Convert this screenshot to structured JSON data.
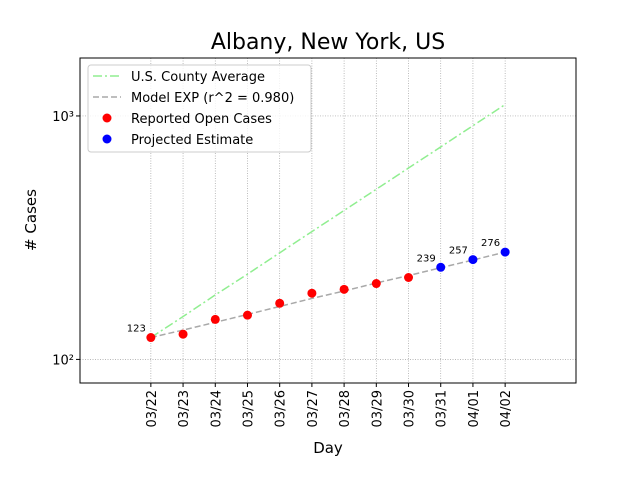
{
  "chart_data": {
    "type": "line",
    "title": "Albany, New York, US",
    "xlabel": "Day",
    "ylabel": "# Cases",
    "categories": [
      "03/22",
      "03/23",
      "03/24",
      "03/25",
      "03/26",
      "03/27",
      "03/28",
      "03/29",
      "03/30",
      "03/31",
      "04/01",
      "04/02"
    ],
    "ylim": [
      80,
      1730
    ],
    "yscale": "log",
    "yticks": [
      {
        "value": 100,
        "label": "10²"
      },
      {
        "value": 1000,
        "label": "10³"
      }
    ],
    "grid": true,
    "legend": "upper left",
    "series": [
      {
        "name": "U.S. County Average",
        "style": "dashdot",
        "color": "#90ee90",
        "values": [
          123,
          150,
          184,
          224,
          274,
          335,
          409,
          500,
          611,
          746,
          912,
          1114
        ]
      },
      {
        "name": "Model EXP (r^2 = 0.980)",
        "style": "dashed",
        "color": "#a9a9a9",
        "values": [
          123,
          132,
          142,
          153,
          165,
          178,
          191,
          206,
          221,
          238,
          256,
          276
        ]
      },
      {
        "name": "Reported Open Cases",
        "style": "marker",
        "color": "#ff0000",
        "data_labels": "first",
        "values": [
          123,
          127,
          146,
          152,
          170,
          187,
          194,
          205,
          217,
          null,
          null,
          null
        ]
      },
      {
        "name": "Projected Estimate",
        "style": "marker",
        "color": "#0000ff",
        "data_labels": "all",
        "values": [
          null,
          null,
          null,
          null,
          null,
          null,
          null,
          null,
          null,
          239,
          257,
          276
        ]
      }
    ]
  }
}
